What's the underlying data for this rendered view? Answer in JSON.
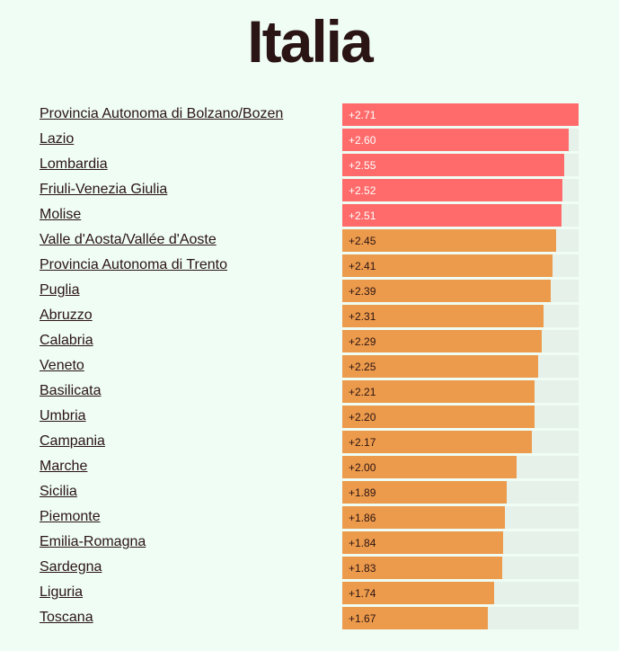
{
  "title": "Italia",
  "chart_data": {
    "type": "bar",
    "orientation": "horizontal",
    "title": "Italia",
    "xlim": [
      0,
      2.71
    ],
    "categories": [
      "Provincia Autonoma di Bolzano/Bozen",
      "Lazio",
      "Lombardia",
      "Friuli-Venezia Giulia",
      "Molise",
      "Valle d'Aosta/Vallée d'Aoste",
      "Provincia Autonoma di Trento",
      "Puglia",
      "Abruzzo",
      "Calabria",
      "Veneto",
      "Basilicata",
      "Umbria",
      "Campania",
      "Marche",
      "Sicilia",
      "Piemonte",
      "Emilia-Romagna",
      "Sardegna",
      "Liguria",
      "Toscana"
    ],
    "values": [
      2.71,
      2.6,
      2.55,
      2.52,
      2.51,
      2.45,
      2.41,
      2.39,
      2.31,
      2.29,
      2.25,
      2.21,
      2.2,
      2.17,
      2.0,
      1.89,
      1.86,
      1.84,
      1.83,
      1.74,
      1.67
    ],
    "labels": [
      "+2.71",
      "+2.60",
      "+2.55",
      "+2.52",
      "+2.51",
      "+2.45",
      "+2.41",
      "+2.39",
      "+2.31",
      "+2.29",
      "+2.25",
      "+2.21",
      "+2.20",
      "+2.17",
      "+2.00",
      "+1.89",
      "+1.86",
      "+1.84",
      "+1.83",
      "+1.74",
      "+1.67"
    ],
    "highlight_count": 5,
    "colors": {
      "highlight": "#ff6b6b",
      "normal": "#ec9a4b",
      "track": "#e6f1ea",
      "highlight_text": "#ffffff",
      "normal_text": "#2a1414"
    }
  }
}
